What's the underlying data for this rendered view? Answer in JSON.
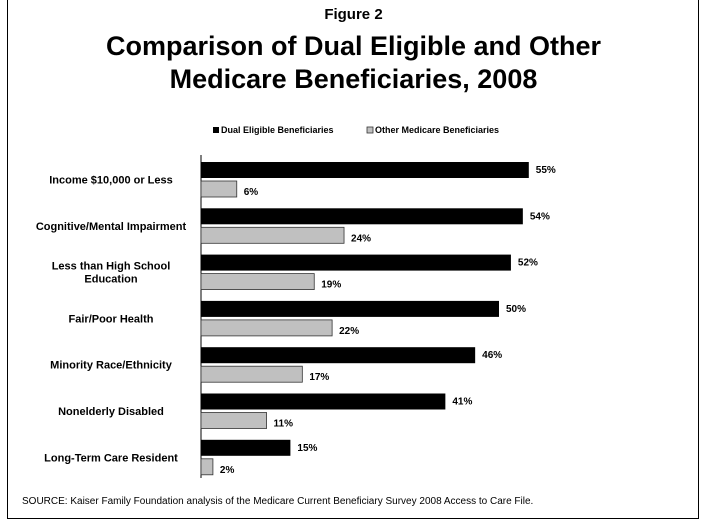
{
  "figure_label": "Figure 2",
  "title_line1": "Comparison of Dual Eligible and Other",
  "title_line2": "Medicare Beneficiaries, 2008",
  "source": "SOURCE: Kaiser Family Foundation analysis of the Medicare Current Beneficiary Survey 2008 Access to Care File.",
  "colors": {
    "dual": "#000000",
    "other": "#c0c0c0",
    "other_border": "#333333"
  },
  "chart_data": {
    "type": "bar",
    "orientation": "horizontal",
    "title": "Comparison of Dual Eligible and Other Medicare Beneficiaries, 2008",
    "categories": [
      [
        "Income $10,000 or Less"
      ],
      [
        "Cognitive/Mental Impairment"
      ],
      [
        "Less than High School",
        "Education"
      ],
      [
        "Fair/Poor Health"
      ],
      [
        "Minority Race/Ethnicity"
      ],
      [
        "Nonelderly Disabled"
      ],
      [
        "Long-Term Care Resident"
      ]
    ],
    "series": [
      {
        "name": "Dual Eligible Beneficiaries",
        "values": [
          55,
          54,
          52,
          50,
          46,
          41,
          15
        ],
        "labels": [
          "55%",
          "54%",
          "52%",
          "50%",
          "46%",
          "41%",
          "15%"
        ]
      },
      {
        "name": "Other Medicare Beneficiaries",
        "values": [
          6,
          24,
          19,
          22,
          17,
          11,
          2
        ],
        "labels": [
          "6%",
          "24%",
          "19%",
          "22%",
          "17%",
          "11%",
          "2%"
        ]
      }
    ],
    "xlim": [
      0,
      55
    ],
    "legend_position": "top",
    "grid": false
  }
}
